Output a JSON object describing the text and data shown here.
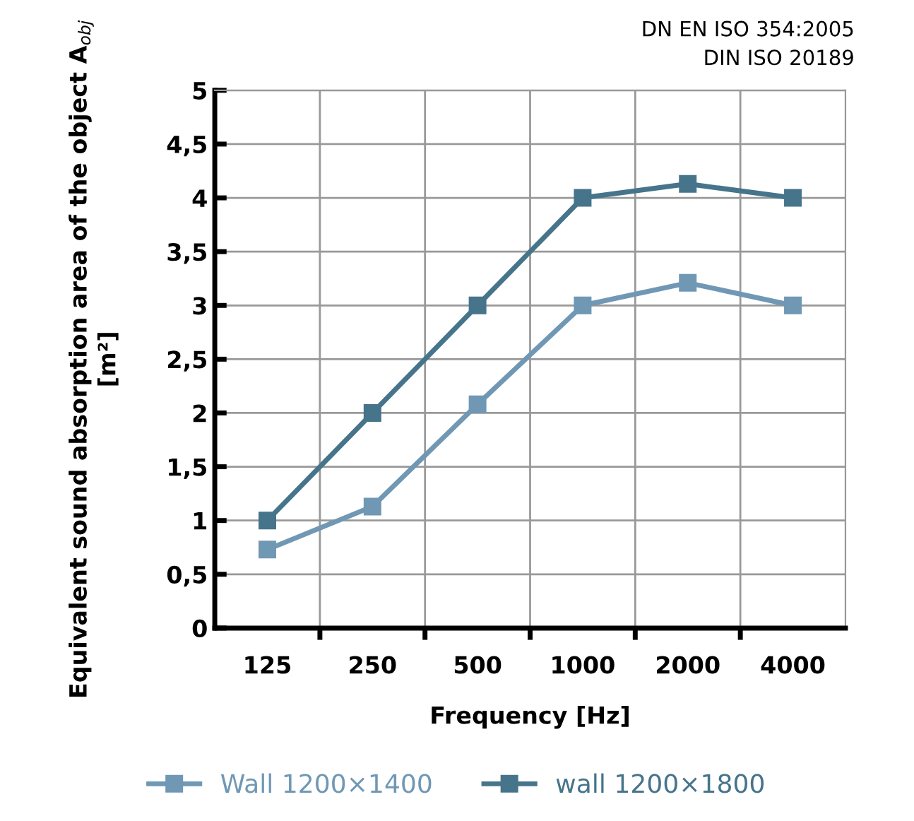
{
  "chart_data": {
    "type": "line",
    "xlabel": "Frequency [Hz]",
    "ylabel": "Equivalent sound absorption area of the object A$_{obj}$ [m²]",
    "annotations": [
      "DN EN ISO 354:2005",
      "DIN ISO 20189"
    ],
    "categories": [
      "125",
      "250",
      "500",
      "1000",
      "2000",
      "4000"
    ],
    "series": [
      {
        "name": "Wall 1200×1400",
        "color": "#7098b4",
        "values": [
          0.73,
          1.13,
          2.08,
          3.0,
          3.21,
          3.0
        ]
      },
      {
        "name": "wall 1200×1800",
        "color": "#46748b",
        "values": [
          1.0,
          2.0,
          3.0,
          4.0,
          4.13,
          4.0
        ]
      }
    ],
    "ylim": [
      0,
      5
    ],
    "yticks": [
      0,
      {
        "value": 0.5,
        "label": "0,5"
      },
      1,
      {
        "value": 1.5,
        "label": "1,5"
      },
      2,
      {
        "value": 2.5,
        "label": "2,5"
      },
      3,
      {
        "value": 3.5,
        "label": "3,5"
      },
      4,
      {
        "value": 4.5,
        "label": "4,5"
      },
      5
    ],
    "grid": true,
    "legend": "bottom",
    "marker": "square",
    "line_style": "solid"
  }
}
